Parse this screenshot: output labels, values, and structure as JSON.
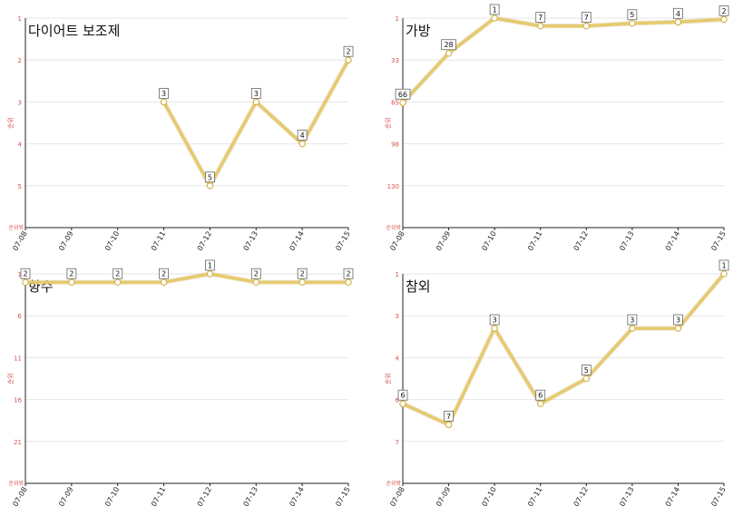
{
  "chart_data": [
    {
      "type": "line",
      "title": "다이어트 보조제",
      "ylabel": "순위",
      "y_reversed": true,
      "ylim": [
        1,
        6
      ],
      "yticks": [
        "1",
        "2",
        "3",
        "4",
        "5"
      ],
      "bottom_label": "순위밖",
      "categories": [
        "07-08",
        "07-09",
        "07-10",
        "07-11",
        "07-12",
        "07-13",
        "07-14",
        "07-15"
      ],
      "series": [
        {
          "values": [
            null,
            null,
            null,
            3,
            5,
            3,
            4,
            2
          ],
          "labels": [
            "",
            "",
            "",
            "3",
            "5",
            "3",
            "4",
            "2"
          ]
        }
      ],
      "grid": true,
      "line_color": "#e6c96a"
    },
    {
      "type": "line",
      "title": "가방",
      "ylabel": "순위",
      "y_reversed": true,
      "ylim": [
        1,
        162
      ],
      "yticks": [
        "1",
        "33",
        "65",
        "98",
        "130"
      ],
      "bottom_label": "순위밖",
      "categories": [
        "07-08",
        "07-09",
        "07-10",
        "07-11",
        "07-12",
        "07-13",
        "07-14",
        "07-15"
      ],
      "series": [
        {
          "values": [
            66,
            28,
            1,
            7,
            7,
            5,
            4,
            2
          ],
          "labels": [
            "66",
            "28",
            "1",
            "7",
            "7",
            "5",
            "4",
            "2"
          ]
        }
      ],
      "grid": true,
      "line_color": "#e6c96a"
    },
    {
      "type": "line",
      "title": "향수",
      "ylabel": "순위",
      "y_reversed": true,
      "ylim": [
        1,
        26
      ],
      "yticks": [
        "1",
        "6",
        "11",
        "16",
        "21"
      ],
      "bottom_label": "순위밖",
      "categories": [
        "07-08",
        "07-09",
        "07-10",
        "07-11",
        "07-12",
        "07-13",
        "07-14",
        "07-15"
      ],
      "series": [
        {
          "values": [
            2,
            2,
            2,
            2,
            1,
            2,
            2,
            2
          ],
          "labels": [
            "2",
            "2",
            "2",
            "2",
            "1",
            "2",
            "2",
            "2"
          ]
        }
      ],
      "grid": true,
      "line_color": "#e6c96a"
    },
    {
      "type": "line",
      "title": "참외",
      "ylabel": "순위",
      "y_reversed": true,
      "ylim": [
        1,
        6
      ],
      "yticks": [
        "1",
        "3",
        "4",
        "6",
        "7"
      ],
      "bottom_label": "순위밖",
      "categories": [
        "07-08",
        "07-09",
        "07-10",
        "07-11",
        "07-12",
        "07-13",
        "07-14",
        "07-15"
      ],
      "series": [
        {
          "values": [
            4.1,
            4.6,
            2.3,
            4.1,
            3.5,
            2.3,
            2.3,
            1
          ],
          "labels": [
            "6",
            "7",
            "3",
            "6",
            "5",
            "3",
            "3",
            "1"
          ]
        }
      ],
      "grid": true,
      "line_color": "#e6c96a"
    }
  ]
}
